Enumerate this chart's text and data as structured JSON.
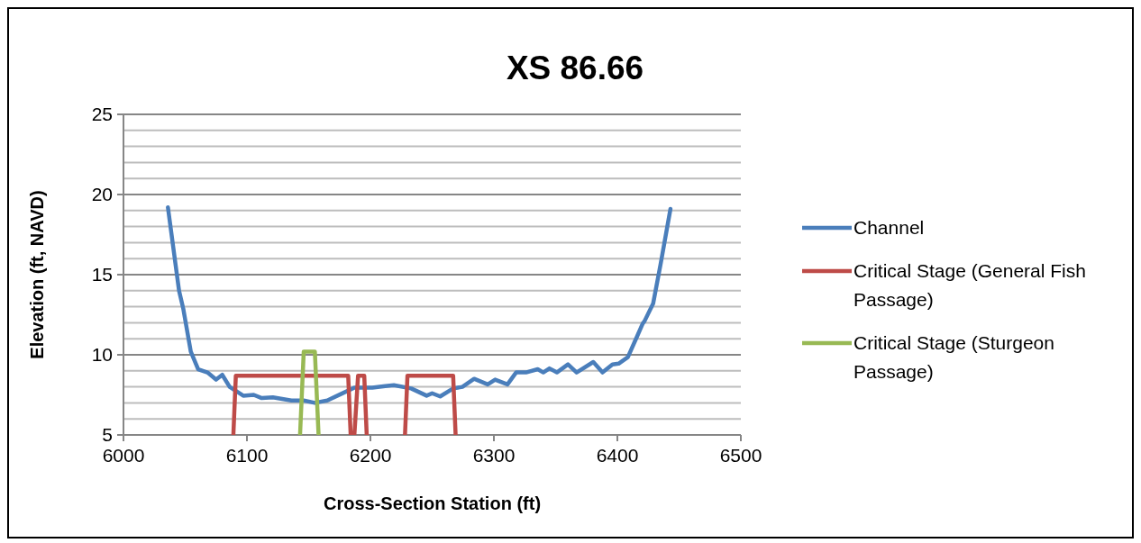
{
  "chart_data": {
    "type": "line",
    "title": "XS 86.66",
    "xlabel": "Cross-Section Station (ft)",
    "ylabel": "Elevation (ft, NAVD)",
    "xlim": [
      6000,
      6500
    ],
    "xticks": [
      6000,
      6100,
      6200,
      6300,
      6400,
      6500
    ],
    "ylim": [
      5,
      25
    ],
    "yticks": [
      5,
      {
        "value": 6,
        "label": null
      },
      {
        "value": 7,
        "label": null
      },
      {
        "value": 8,
        "label": null
      },
      {
        "value": 9,
        "label": null
      },
      10,
      {
        "value": 11,
        "label": null
      },
      {
        "value": 12,
        "label": null
      },
      {
        "value": 13,
        "label": null
      },
      {
        "value": 14,
        "label": null
      },
      15,
      {
        "value": 16,
        "label": null
      },
      {
        "value": 17,
        "label": null
      },
      {
        "value": 18,
        "label": null
      },
      {
        "value": 19,
        "label": null
      },
      20,
      {
        "value": 21,
        "label": null
      },
      {
        "value": 22,
        "label": null
      },
      {
        "value": 23,
        "label": null
      },
      {
        "value": 24,
        "label": null
      },
      25
    ],
    "grid": "y",
    "legend": "right",
    "marker": "none",
    "line_style": "solid",
    "series": [
      {
        "name": "Channel",
        "color": "#4a7ebb",
        "x": [
          6036,
          6045,
          6048.5,
          6054.5,
          6060.5,
          6068,
          6075,
          6080,
          6086,
          6097,
          6105.5,
          6112,
          6121,
          6136,
          6146,
          6155,
          6165,
          6176,
          6187,
          6201.5,
          6212,
          6219,
          6233,
          6245.5,
          6250,
          6256.5,
          6267,
          6274.5,
          6284,
          6295,
          6301,
          6311,
          6318,
          6326,
          6335.5,
          6340,
          6345,
          6351,
          6360,
          6367,
          6380.5,
          6388,
          6396,
          6401,
          6408.5,
          6416,
          6420.5,
          6422,
          6429,
          6435,
          6443
        ],
        "values": [
          19.2,
          14.0,
          12.85,
          10.2,
          9.1,
          8.9,
          8.45,
          8.75,
          8.0,
          7.45,
          7.5,
          7.3,
          7.35,
          7.15,
          7.15,
          7.0,
          7.15,
          7.55,
          7.95,
          7.95,
          8.05,
          8.1,
          7.9,
          7.45,
          7.6,
          7.4,
          7.9,
          8.0,
          8.5,
          8.15,
          8.45,
          8.15,
          8.9,
          8.9,
          9.1,
          8.9,
          9.15,
          8.9,
          9.4,
          8.9,
          9.55,
          8.9,
          9.4,
          9.45,
          9.85,
          11.15,
          11.95,
          12.1,
          13.2,
          15.65,
          19.1
        ]
      },
      {
        "name": "Critical Stage (General Fish Passage)",
        "color": "#be4b48",
        "x": [
          6089,
          6091,
          6182,
          6184,
          6187,
          6190,
          6195,
          6197,
          6212,
          6228,
          6230,
          6267,
          6269
        ],
        "values": [
          5,
          8.7,
          8.7,
          5,
          5,
          8.7,
          8.7,
          5,
          null,
          5,
          8.7,
          8.7,
          5
        ]
      },
      {
        "name": "Critical Stage (Sturgeon Passage)",
        "color": "#98b954",
        "x": [
          6143,
          6146,
          6155,
          6158
        ],
        "values": [
          5,
          10.2,
          10.2,
          5
        ]
      }
    ]
  }
}
